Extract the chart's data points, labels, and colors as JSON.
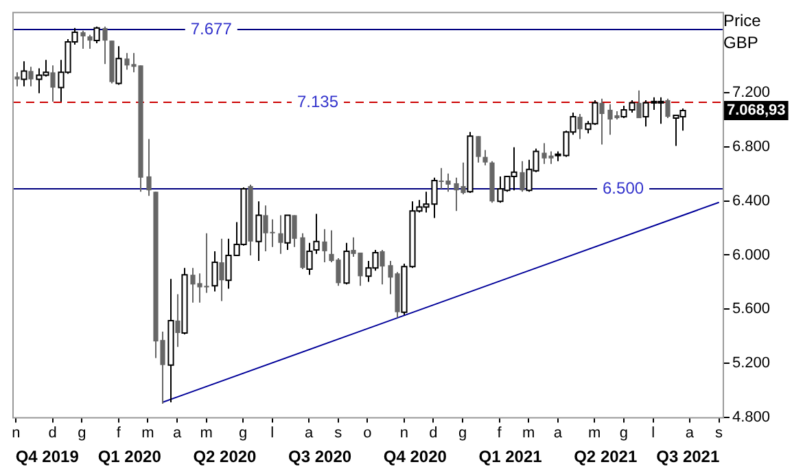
{
  "chart_data": {
    "type": "candlestick",
    "ylabel": "Price GBP",
    "categories": [
      "n",
      null,
      null,
      null,
      null,
      "d",
      null,
      null,
      null,
      "g",
      null,
      null,
      null,
      null,
      "f",
      null,
      null,
      null,
      "m",
      null,
      null,
      null,
      "a",
      null,
      null,
      null,
      "m",
      null,
      null,
      null,
      null,
      "g",
      null,
      null,
      null,
      "l",
      null,
      null,
      null,
      null,
      "a",
      null,
      null,
      null,
      "s",
      null,
      null,
      null,
      "o",
      null,
      null,
      null,
      null,
      "n",
      null,
      null,
      null,
      "d",
      null,
      null,
      null,
      "g",
      null,
      null,
      null,
      null,
      "f",
      null,
      null,
      null,
      "m",
      null,
      null,
      null,
      "a",
      null,
      null,
      null,
      null,
      "m",
      null,
      null,
      null,
      "g",
      null,
      null,
      null,
      "l",
      null,
      null,
      null,
      null,
      "a",
      null,
      null,
      null,
      "s"
    ],
    "ohlc": [
      [
        7321,
        7352,
        7249,
        7300
      ],
      [
        7300,
        7434,
        7249,
        7362
      ],
      [
        7362,
        7393,
        7249,
        7300
      ],
      [
        7300,
        7382,
        7198,
        7331
      ],
      [
        7331,
        7444,
        7321,
        7352
      ],
      [
        7352,
        7403,
        7136,
        7239
      ],
      [
        7239,
        7444,
        7136,
        7352
      ],
      [
        7352,
        7598,
        7341,
        7577
      ],
      [
        7577,
        7680,
        7557,
        7649
      ],
      [
        7649,
        7660,
        7526,
        7618
      ],
      [
        7618,
        7629,
        7526,
        7587
      ],
      [
        7587,
        7690,
        7567,
        7680
      ],
      [
        7680,
        7690,
        7413,
        7587
      ],
      [
        7587,
        7587,
        7270,
        7280
      ],
      [
        7270,
        7546,
        7260,
        7454
      ],
      [
        7454,
        7495,
        7372,
        7403
      ],
      [
        7413,
        7495,
        7352,
        7393
      ],
      [
        7403,
        7403,
        6469,
        6572
      ],
      [
        6582,
        6859,
        6438,
        6479
      ],
      [
        6469,
        6469,
        5238,
        5361
      ],
      [
        5371,
        5433,
        4899,
        5186
      ],
      [
        5186,
        5823,
        4910,
        5515
      ],
      [
        5515,
        5710,
        5320,
        5423
      ],
      [
        5423,
        5905,
        5413,
        5854
      ],
      [
        5854,
        5905,
        5648,
        5782
      ],
      [
        5792,
        5864,
        5648,
        5761
      ],
      [
        5772,
        6161,
        5720,
        5761
      ],
      [
        5772,
        6028,
        5730,
        5946
      ],
      [
        5946,
        6120,
        5659,
        5813
      ],
      [
        5813,
        6120,
        5751,
        5997
      ],
      [
        5997,
        6243,
        5997,
        6079
      ],
      [
        6079,
        6500,
        6069,
        6490
      ],
      [
        6510,
        6520,
        5997,
        6100
      ],
      [
        6100,
        6397,
        5956,
        6295
      ],
      [
        6295,
        6367,
        6028,
        6161
      ],
      [
        6171,
        6264,
        6059,
        6161
      ],
      [
        6161,
        6295,
        6008,
        6090
      ],
      [
        6090,
        6295,
        6038,
        6295
      ],
      [
        6295,
        6295,
        6059,
        6120
      ],
      [
        6131,
        6161,
        5895,
        5905
      ],
      [
        5895,
        6090,
        5854,
        6028
      ],
      [
        6038,
        6305,
        6008,
        6100
      ],
      [
        6100,
        6192,
        5946,
        6028
      ],
      [
        6008,
        6182,
        5946,
        5956
      ],
      [
        5966,
        5977,
        5772,
        5792
      ],
      [
        5792,
        6090,
        5782,
        6028
      ],
      [
        6038,
        6131,
        5987,
        6008
      ],
      [
        6018,
        6018,
        5772,
        5843
      ],
      [
        5843,
        5956,
        5802,
        5905
      ],
      [
        5905,
        6038,
        5884,
        6018
      ],
      [
        6028,
        6038,
        5782,
        5915
      ],
      [
        5925,
        5956,
        5710,
        5833
      ],
      [
        5864,
        5874,
        5536,
        5577
      ],
      [
        5577,
        5936,
        5556,
        5915
      ],
      [
        5915,
        6397,
        5905,
        6326
      ],
      [
        6326,
        6408,
        6315,
        6356
      ],
      [
        6356,
        6469,
        6315,
        6377
      ],
      [
        6377,
        6572,
        6274,
        6551
      ],
      [
        6551,
        6644,
        6490,
        6541
      ],
      [
        6551,
        6603,
        6469,
        6521
      ],
      [
        6531,
        6572,
        6326,
        6479
      ],
      [
        6510,
        6685,
        6449,
        6459
      ],
      [
        6469,
        6910,
        6459,
        6880
      ],
      [
        6880,
        6880,
        6685,
        6726
      ],
      [
        6726,
        6777,
        6664,
        6685
      ],
      [
        6685,
        6695,
        6387,
        6397
      ],
      [
        6397,
        6582,
        6387,
        6490
      ],
      [
        6479,
        6582,
        6469,
        6582
      ],
      [
        6582,
        6798,
        6479,
        6613
      ],
      [
        6613,
        6695,
        6469,
        6479
      ],
      [
        6479,
        6705,
        6469,
        6633
      ],
      [
        6623,
        6787,
        6613,
        6767
      ],
      [
        6757,
        6828,
        6674,
        6715
      ],
      [
        6736,
        6767,
        6674,
        6715
      ],
      [
        6736,
        6767,
        6695,
        6746
      ],
      [
        6736,
        6921,
        6726,
        6910
      ],
      [
        6910,
        7054,
        6890,
        7023
      ],
      [
        7023,
        7044,
        6859,
        6931
      ],
      [
        6931,
        6992,
        6900,
        6972
      ],
      [
        6972,
        7146,
        6962,
        7126
      ],
      [
        7126,
        7157,
        6818,
        7044
      ],
      [
        7075,
        7116,
        6890,
        7003
      ],
      [
        7034,
        7064,
        7003,
        7013
      ],
      [
        7023,
        7105,
        7013,
        7075
      ],
      [
        7075,
        7146,
        7054,
        7126
      ],
      [
        7126,
        7218,
        7013,
        7013
      ],
      [
        7023,
        7146,
        6951,
        7126
      ],
      [
        7126,
        7167,
        7075,
        7136
      ],
      [
        7126,
        7167,
        6972,
        7136
      ],
      [
        7146,
        7157,
        7013,
        7023
      ],
      [
        7013,
        7034,
        6808,
        7034
      ],
      [
        7023,
        7085,
        6921,
        7069
      ],
      null,
      null,
      null,
      null,
      null
    ],
    "series": [
      {
        "type": "line",
        "color": "#000099",
        "values": [
          null,
          null,
          null,
          null,
          null,
          null,
          null,
          null,
          null,
          null,
          null,
          null,
          null,
          null,
          null,
          null,
          null,
          null,
          null,
          null,
          4910,
          null,
          null,
          null,
          null,
          null,
          null,
          null,
          null,
          null,
          null,
          null,
          null,
          null,
          null,
          null,
          null,
          null,
          null,
          null,
          null,
          null,
          null,
          null,
          null,
          null,
          null,
          null,
          null,
          null,
          null,
          null,
          null,
          null,
          null,
          null,
          null,
          null,
          null,
          null,
          null,
          null,
          null,
          null,
          null,
          null,
          null,
          null,
          null,
          null,
          null,
          null,
          null,
          null,
          null,
          null,
          null,
          null,
          null,
          null,
          null,
          null,
          null,
          null,
          null,
          null,
          null,
          null,
          null,
          null,
          null,
          null,
          null,
          null,
          null,
          null,
          6390
        ]
      }
    ],
    "ref_lines": [
      {
        "axis": "y",
        "value": 7677,
        "label": "7.677",
        "color": "#000080",
        "line_style": "solid"
      },
      {
        "axis": "y",
        "value": 7135,
        "label": "7.135",
        "color": "#cc0000",
        "line_style": "dashed"
      },
      {
        "axis": "y",
        "value": 6500,
        "label": "6.500",
        "color": "#000080",
        "line_style": "solid"
      }
    ],
    "annotations": [
      "7.068,93",
      "Q4 2019",
      "Q1 2020",
      "Q2 2020",
      "Q3 2020",
      "Q4 2020",
      "Q1 2021",
      "Q2 2021",
      "Q3 2021"
    ],
    "ylim": [
      4800,
      7800
    ],
    "yticks": [
      {
        "value": 4800,
        "label": "4.800"
      },
      {
        "value": 5200,
        "label": "5.200"
      },
      {
        "value": 5600,
        "label": "5.600"
      },
      {
        "value": 6000,
        "label": "6.000"
      },
      {
        "value": 6400,
        "label": "6.400"
      },
      {
        "value": 6800,
        "label": "6.800"
      },
      {
        "value": 7200,
        "label": "7.200"
      }
    ]
  }
}
